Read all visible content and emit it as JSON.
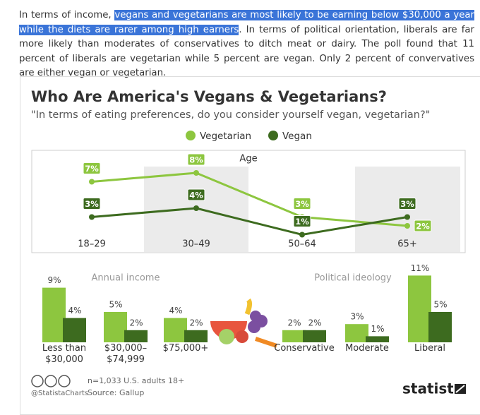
{
  "paragraph": [
    "In terms of income, ",
    "vegans and vegetarians are most likely to be earning below $30,000 a year while the diets are rarer among high earners",
    ". In terms of political orientation, liberals are far more likely than moderates of conservatives to ditch meat or dairy. The poll found that 11 percent of liberals are vegetarian while 5 percent are vegan. Only 2 percent of convervatives are either vegan or vegetarian."
  ],
  "infographic": {
    "title": "Who Are America's Vegans & Vegetarians?",
    "subtitle": "\"In terms of eating preferences, do you consider yourself vegan, vegetarian?\"",
    "note": "n=1,033 U.S. adults 18+",
    "source": "Source: Gallup",
    "credit": "@StatistaCharts",
    "brand": "statista"
  },
  "chart_data": [
    {
      "type": "line",
      "title": "Age",
      "categories": [
        "18–29",
        "30–49",
        "50–64",
        "65+"
      ],
      "series": [
        {
          "name": "Vegetarian",
          "color": "#8dc63f",
          "values": [
            7,
            8,
            3,
            2
          ],
          "value_labels": [
            "7%",
            "8%",
            "3%",
            "2%"
          ]
        },
        {
          "name": "Vegan",
          "color": "#3d6b1f",
          "values": [
            3,
            4,
            1,
            3
          ],
          "value_labels": [
            "3%",
            "4%",
            "1%",
            "3%"
          ]
        }
      ]
    },
    {
      "type": "bar",
      "title": "Annual income",
      "categories": [
        "Less than $30,000",
        "$30,000–$74,999",
        "$75,000+"
      ],
      "series": [
        {
          "name": "Vegetarian",
          "color": "#8dc63f",
          "values": [
            9,
            5,
            4
          ],
          "value_labels": [
            "9%",
            "5%",
            "4%"
          ]
        },
        {
          "name": "Vegan",
          "color": "#3d6b1f",
          "values": [
            4,
            2,
            2
          ],
          "value_labels": [
            "4%",
            "2%",
            "2%"
          ]
        }
      ]
    },
    {
      "type": "bar",
      "title": "Political ideology",
      "categories": [
        "Conservative",
        "Moderate",
        "Liberal"
      ],
      "series": [
        {
          "name": "Vegetarian",
          "color": "#8dc63f",
          "values": [
            2,
            3,
            11
          ],
          "value_labels": [
            "2%",
            "3%",
            "11%"
          ]
        },
        {
          "name": "Vegan",
          "color": "#3d6b1f",
          "values": [
            2,
            1,
            5
          ],
          "value_labels": [
            "2%",
            "1%",
            "5%"
          ]
        }
      ]
    }
  ]
}
